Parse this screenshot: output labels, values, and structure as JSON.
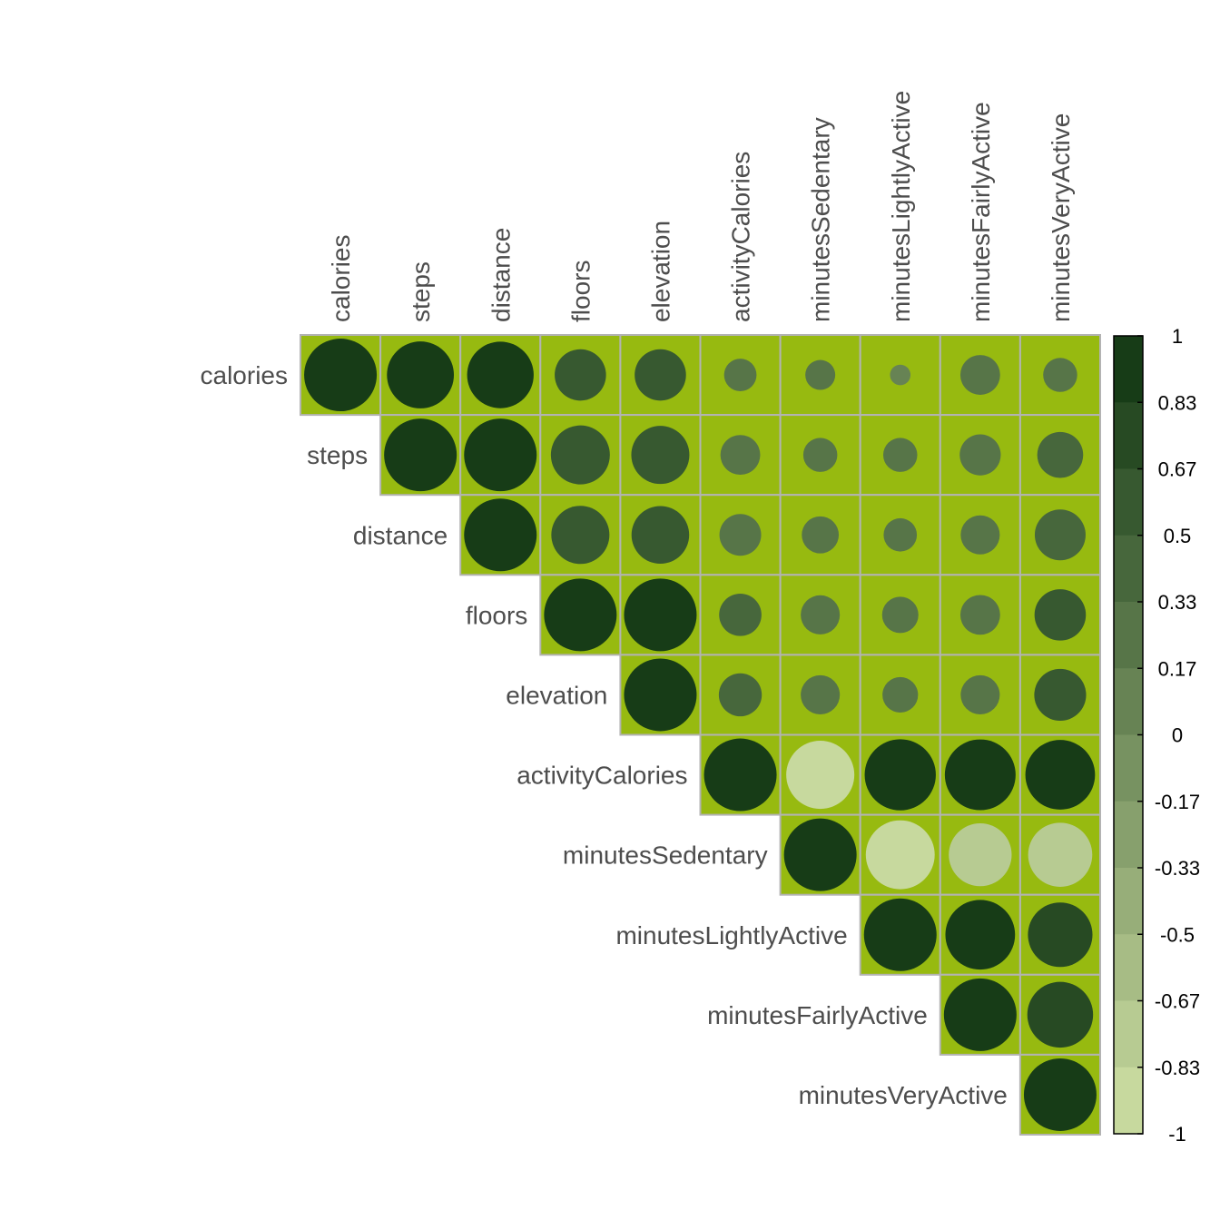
{
  "chart_data": {
    "type": "heatmap",
    "title": "",
    "variables": [
      "calories",
      "steps",
      "distance",
      "floors",
      "elevation",
      "activityCalories",
      "minutesSedentary",
      "minutesLightlyActive",
      "minutesFairlyActive",
      "minutesVeryActive"
    ],
    "layout": "upper-triangle",
    "glyph": "circle",
    "matrix": [
      [
        1.0,
        0.85,
        0.84,
        0.5,
        0.5,
        0.2,
        0.17,
        0.08,
        0.3,
        0.22
      ],
      [
        null,
        1.0,
        1.0,
        0.66,
        0.64,
        0.3,
        0.22,
        0.22,
        0.32,
        0.4
      ],
      [
        null,
        null,
        1.0,
        0.64,
        0.63,
        0.33,
        0.26,
        0.21,
        0.29,
        0.49
      ],
      [
        null,
        null,
        null,
        1.0,
        1.0,
        0.34,
        0.29,
        0.25,
        0.3,
        0.5
      ],
      [
        null,
        null,
        null,
        null,
        1.0,
        0.35,
        0.29,
        0.24,
        0.29,
        0.51
      ],
      [
        null,
        null,
        null,
        null,
        null,
        1.0,
        -0.88,
        0.96,
        0.95,
        0.92
      ],
      [
        null,
        null,
        null,
        null,
        null,
        null,
        1.0,
        -0.9,
        -0.75,
        -0.78
      ],
      [
        null,
        null,
        null,
        null,
        null,
        null,
        null,
        1.0,
        0.92,
        0.79
      ],
      [
        null,
        null,
        null,
        null,
        null,
        null,
        null,
        null,
        1.0,
        0.82
      ],
      [
        null,
        null,
        null,
        null,
        null,
        null,
        null,
        null,
        null,
        1.0
      ]
    ],
    "colorbar": {
      "ticks": [
        "1",
        "0.83",
        "0.67",
        "0.5",
        "0.33",
        "0.17",
        "0",
        "-0.17",
        "-0.33",
        "-0.5",
        "-0.67",
        "-0.83",
        "-1"
      ],
      "range": [
        -1,
        1
      ],
      "low_color": "#cfe0a4",
      "high_color": "#0f3511"
    },
    "cell_background": "#97ba10",
    "cell_border": "#b3b3b3",
    "legend_placement": "right"
  }
}
